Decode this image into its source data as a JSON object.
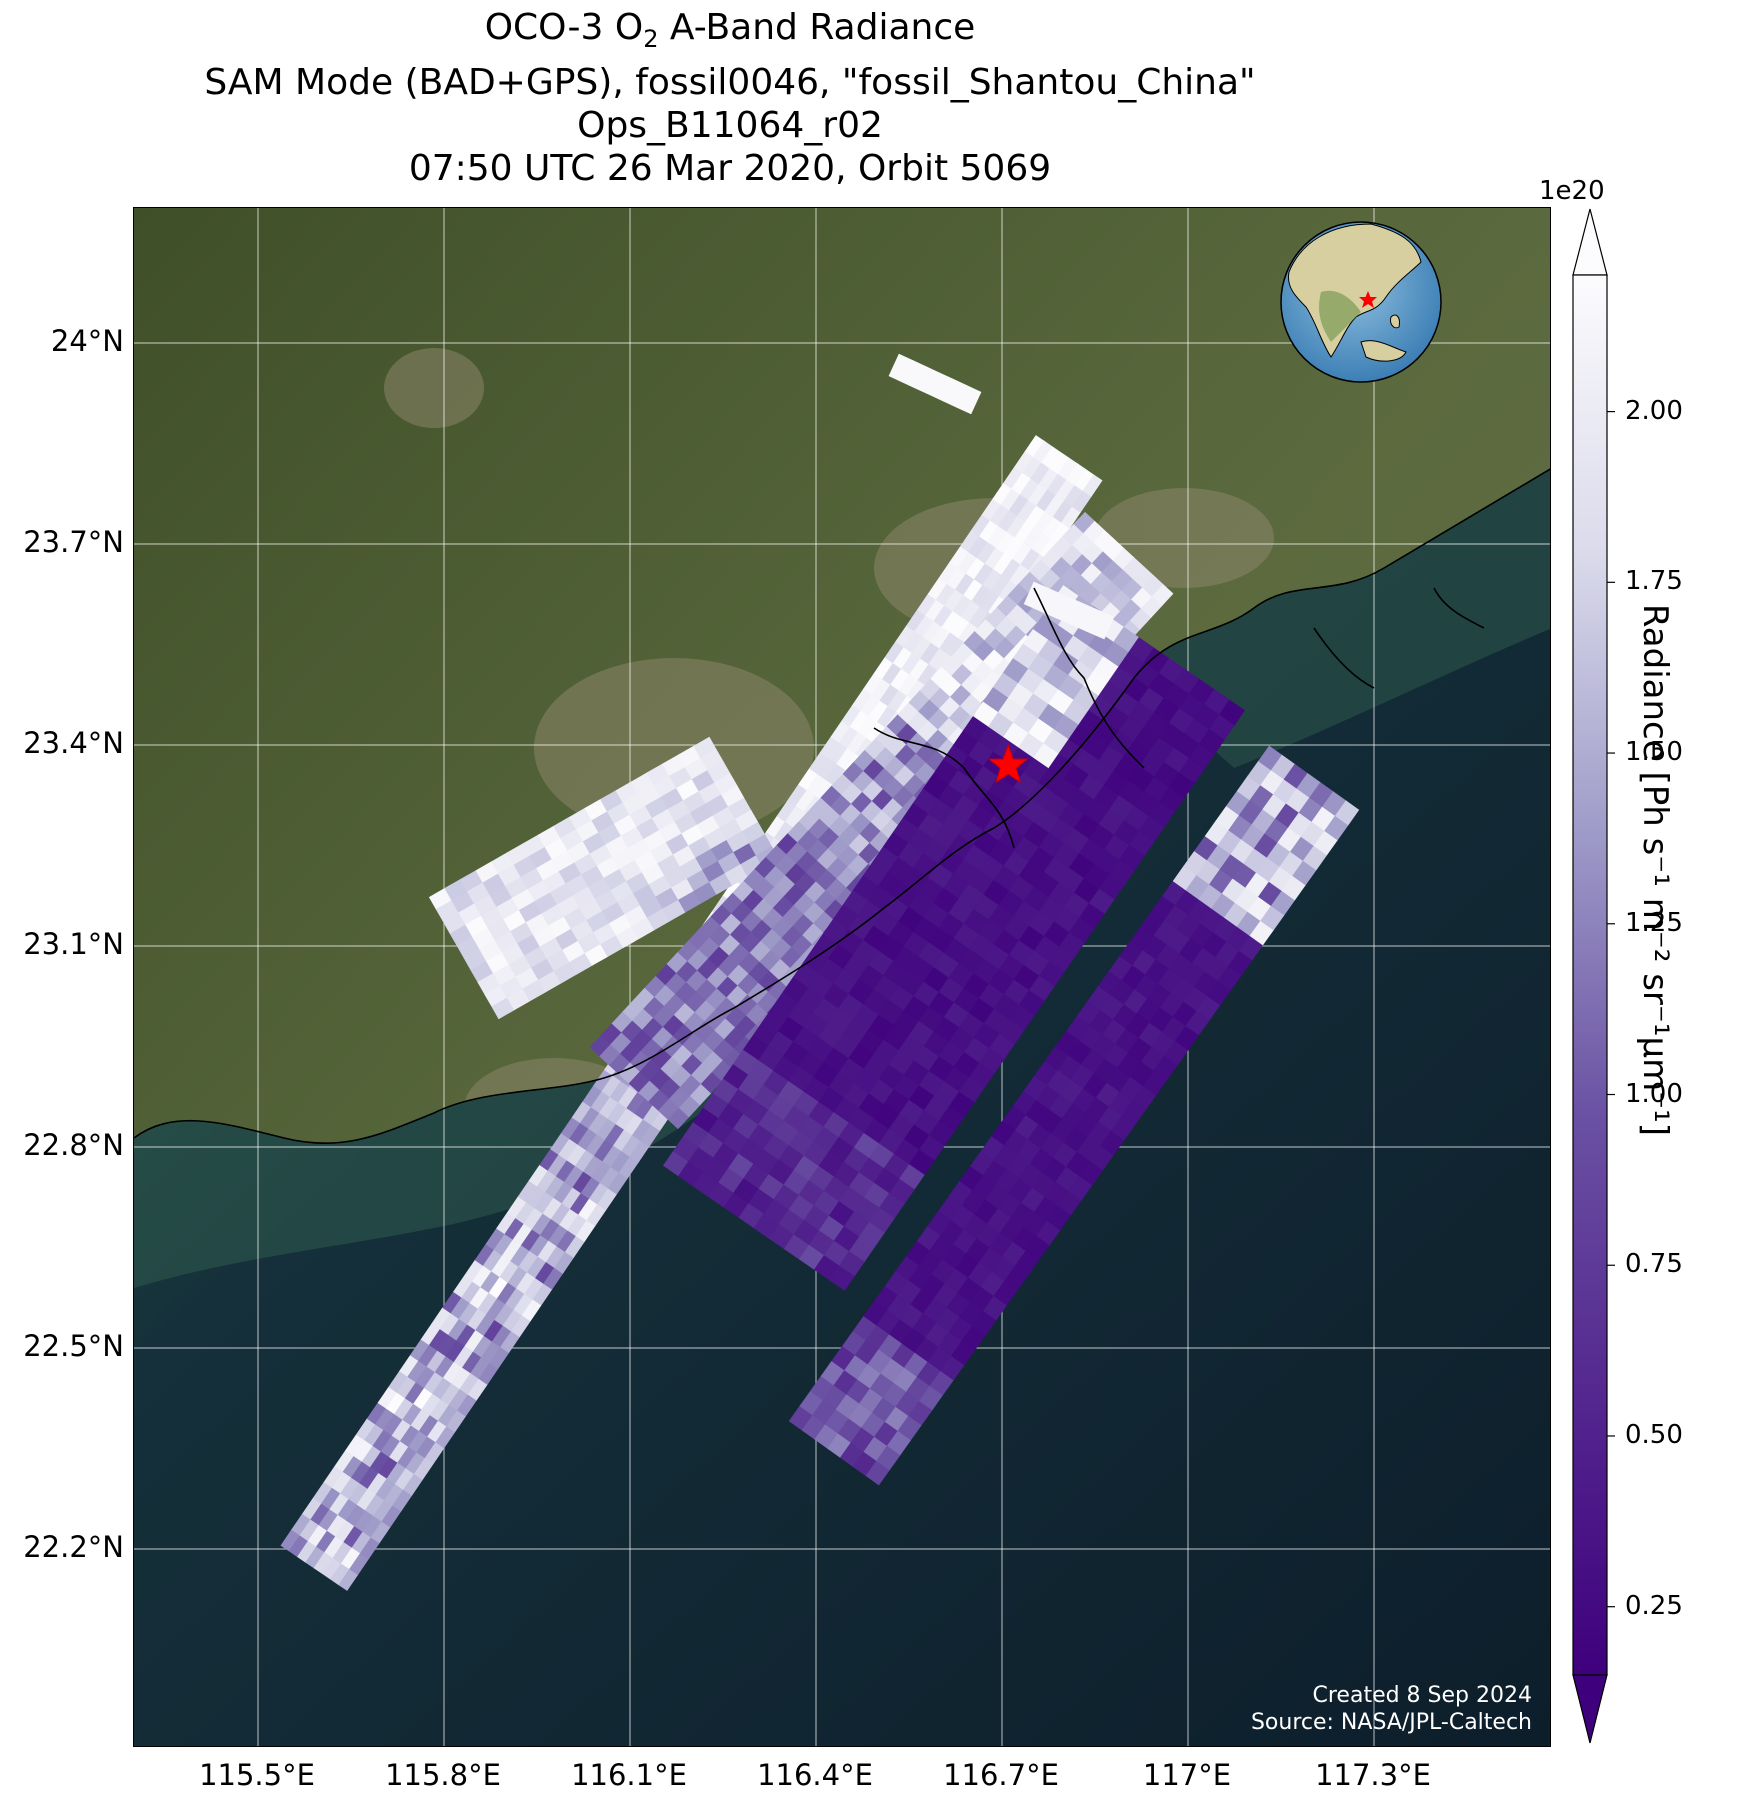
{
  "title": {
    "line1_pre": "OCO-3 O",
    "line1_sub": "2",
    "line1_post": " A-Band Radiance",
    "line2": "SAM Mode (BAD+GPS), fossil0046, \"fossil_Shantou_China\"",
    "line3": "Ops_B11064_r02",
    "line4": "07:50 UTC 26 Mar 2020, Orbit 5069"
  },
  "map": {
    "lat_ticks": [
      "24°N",
      "23.7°N",
      "23.4°N",
      "23.1°N",
      "22.8°N",
      "22.5°N",
      "22.2°N"
    ],
    "lon_ticks": [
      "115.5°E",
      "115.8°E",
      "116.1°E",
      "116.4°E",
      "116.7°E",
      "117°E",
      "117.3°E"
    ],
    "target_marker": "red-star",
    "target_location": {
      "lon": 116.71,
      "lat": 23.37
    },
    "inset": "globe-locator",
    "footer_created": "Created 8 Sep 2024",
    "footer_source": "Source: NASA/JPL-Caltech"
  },
  "colorbar": {
    "label": "Radiance [Ph s⁻¹ m⁻² sr⁻¹μm⁻¹]",
    "exponent": "1e20",
    "ticks": [
      "2.00",
      "1.75",
      "1.50",
      "1.25",
      "1.00",
      "0.75",
      "0.50",
      "0.25"
    ],
    "tick_values": [
      2.0,
      1.75,
      1.5,
      1.25,
      1.0,
      0.75,
      0.5,
      0.25
    ],
    "range": [
      0.15,
      2.2
    ],
    "extend": "both",
    "colormap": "Purples_r",
    "color_low": "#3f007d",
    "color_mid": "#8a84bd",
    "color_high": "#fcfbfd"
  },
  "colors": {
    "land": "#4e5c33",
    "sea": "#0e1f2c",
    "coast_water": "#2f5b4e",
    "target": "#ff0000"
  }
}
